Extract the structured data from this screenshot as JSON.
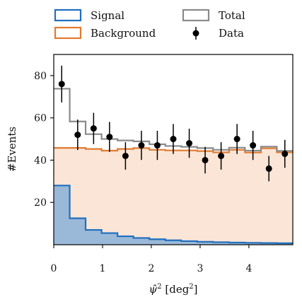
{
  "chart_data": {
    "type": "histogram",
    "xlabel": "ψ̂² [deg²]",
    "ylabel": "#Events",
    "xlim": [
      0,
      4.9
    ],
    "ylim": [
      0,
      90
    ],
    "x_ticks": [
      0,
      1,
      2,
      3,
      4
    ],
    "x_tick_labels": [
      "0",
      "1",
      "2",
      "3",
      "4"
    ],
    "y_ticks": [
      20,
      40,
      60,
      80
    ],
    "y_tick_labels": [
      "20",
      "40",
      "60",
      "80"
    ],
    "legend": {
      "placement": "top, above plot (2 columns)",
      "entries": [
        {
          "label": "Signal",
          "kind": "step",
          "color": "#1f6fc0"
        },
        {
          "label": "Total",
          "kind": "step",
          "color": "#8a8a8a"
        },
        {
          "label": "Background",
          "kind": "step",
          "color": "#e07b30"
        },
        {
          "label": "Data",
          "kind": "errorbar",
          "color": "#000000"
        }
      ]
    },
    "bin_edges": [
      0,
      0.327,
      0.653,
      0.98,
      1.307,
      1.633,
      1.96,
      2.287,
      2.613,
      2.94,
      3.267,
      3.593,
      3.92,
      4.247,
      4.573,
      4.9
    ],
    "series": [
      {
        "name": "Signal",
        "color": "#1f6fc0",
        "fill": "#9ab8d8",
        "values": [
          28,
          12.5,
          7,
          5.5,
          4,
          3.2,
          2.6,
          2.1,
          1.7,
          1.4,
          1.2,
          1.0,
          0.9,
          0.8,
          0.7
        ]
      },
      {
        "name": "Background",
        "color": "#e07b30",
        "fill": "#fbe5d6",
        "values": [
          45.8,
          45.8,
          45.3,
          44.5,
          45.3,
          45.7,
          44.9,
          44.6,
          44.6,
          44.3,
          43.7,
          44.9,
          43.6,
          45.6,
          43.7
        ]
      },
      {
        "name": "Total",
        "color": "#8a8a8a",
        "values": [
          73.8,
          58.3,
          52.3,
          50,
          49.3,
          48.9,
          47.5,
          46.7,
          46.3,
          45.7,
          44.9,
          45.9,
          44.5,
          46.4,
          44.4
        ]
      },
      {
        "name": "Data",
        "color": "#000000",
        "x": [
          0.163,
          0.49,
          0.817,
          1.143,
          1.47,
          1.797,
          2.123,
          2.45,
          2.777,
          3.103,
          3.43,
          3.757,
          4.083,
          4.41,
          4.737
        ],
        "values": [
          76,
          52,
          55,
          51,
          42,
          47,
          47,
          50,
          48,
          40,
          42,
          50,
          47,
          36,
          43
        ],
        "yerr": [
          8.7,
          7.2,
          7.4,
          7.1,
          6.5,
          6.9,
          6.9,
          7.1,
          6.9,
          6.3,
          6.5,
          7.1,
          6.9,
          6.0,
          6.6
        ]
      }
    ]
  }
}
